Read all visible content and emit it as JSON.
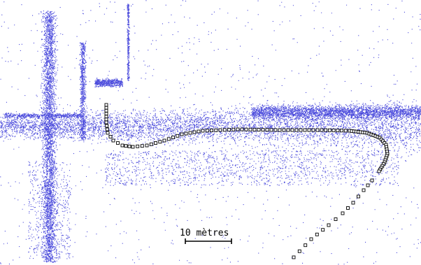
{
  "scale_bar": {
    "label": "10 mètres",
    "length_m": 10
  },
  "colors": {
    "point_cloud": "#2b2bd6",
    "trajectory_marker_stroke": "#000000",
    "trajectory_marker_fill": "#ffffff",
    "scale_bar": "#000000"
  }
}
